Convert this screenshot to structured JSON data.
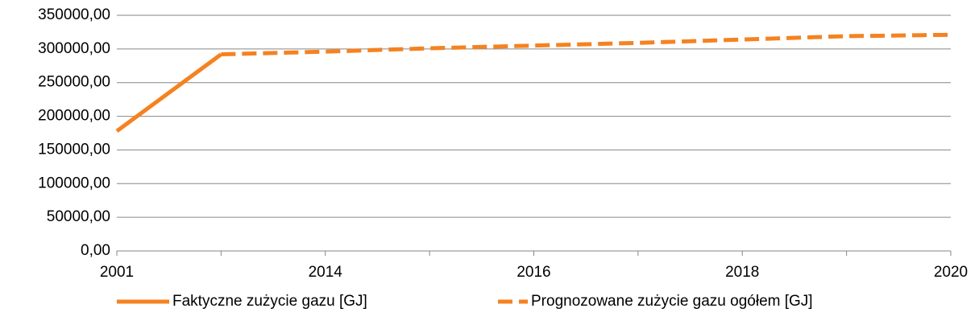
{
  "chart_data": {
    "type": "line",
    "categories": [
      "2001",
      null,
      "2014",
      null,
      "2016",
      null,
      "2018",
      null,
      "2020"
    ],
    "series": [
      {
        "name": "Faktyczne zużycie gazu [GJ]",
        "color": "#f58220",
        "line_style": "solid",
        "values": [
          178000,
          292000,
          null,
          null,
          null,
          null,
          null,
          null,
          null
        ]
      },
      {
        "name": "Prognozowane zużycie gazu ogółem [GJ]",
        "color": "#f58220",
        "line_style": "dashed",
        "values": [
          null,
          292000,
          296000,
          301000,
          305000,
          309000,
          314000,
          319000,
          321000
        ]
      }
    ],
    "ylim": [
      0,
      350000
    ],
    "yticks": [
      {
        "value": 0,
        "label": "0,00"
      },
      {
        "value": 50000,
        "label": "50000,00"
      },
      {
        "value": 100000,
        "label": "100000,00"
      },
      {
        "value": 150000,
        "label": "150000,00"
      },
      {
        "value": 200000,
        "label": "200000,00"
      },
      {
        "value": 250000,
        "label": "250000,00"
      },
      {
        "value": 300000,
        "label": "300000,00"
      },
      {
        "value": 350000,
        "label": "350000,00"
      }
    ],
    "grid": true,
    "legend": "bottom"
  }
}
